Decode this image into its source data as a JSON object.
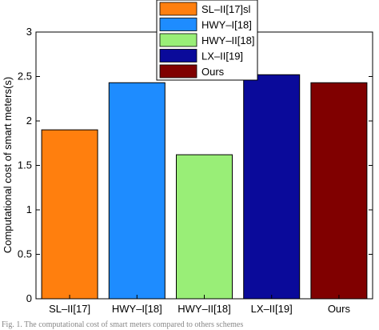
{
  "chart_data": {
    "type": "bar",
    "title": "",
    "xlabel": "",
    "ylabel": "Computational cost of smart meters(s)",
    "ylim": [
      0,
      3
    ],
    "yticks": [
      "0",
      "0.5",
      "1",
      "1.5",
      "2",
      "2.5",
      "3"
    ],
    "grid": false,
    "legend_position": "top-center",
    "categories": [
      "SL–II[17]",
      "HWY–I[18]",
      "HWY–II[18]",
      "LX–II[19]",
      "Ours"
    ],
    "values": [
      1.9,
      2.43,
      1.62,
      2.52,
      2.43
    ],
    "colors": [
      "#ff7f0e",
      "#1e8cff",
      "#99ee77",
      "#0a0a9a",
      "#800000"
    ],
    "legend": [
      "SL–II[17]sl",
      "HWY–I[18]",
      "HWY–II[18]",
      "LX–II[19]",
      "Ours"
    ]
  },
  "caption": "Fig. 1. The computational cost of smart meters compared to others schemes"
}
